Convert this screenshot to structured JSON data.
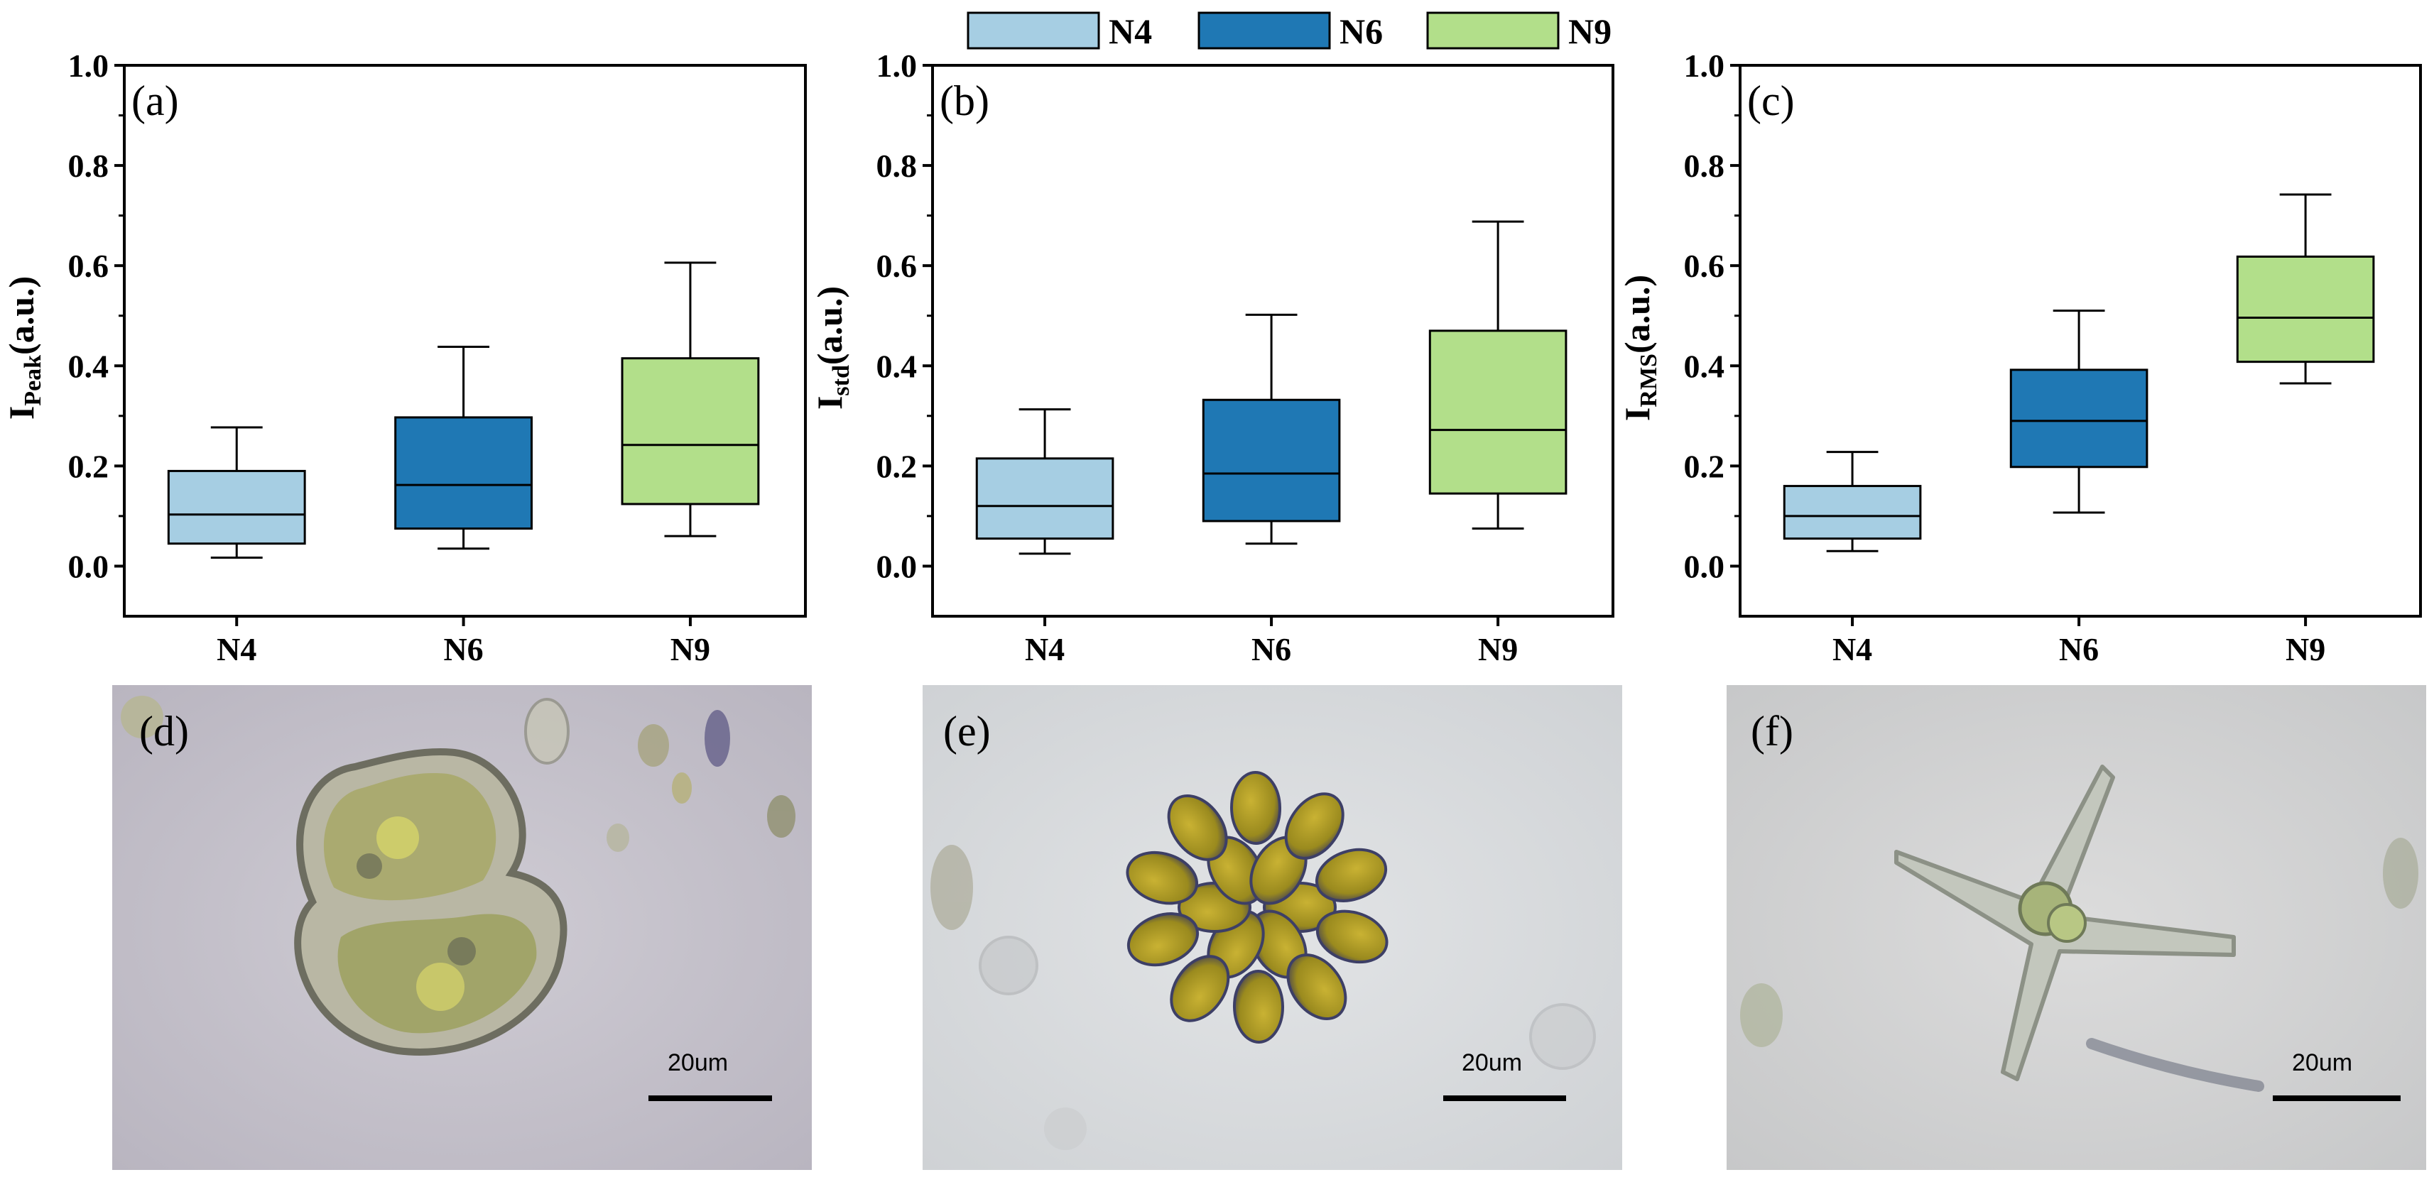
{
  "legend": [
    {
      "name": "N4",
      "color": "#a6cee3"
    },
    {
      "name": "N6",
      "color": "#1f78b4"
    },
    {
      "name": "N9",
      "color": "#b2df8a"
    }
  ],
  "chart_data": [
    {
      "type": "box",
      "panel": "(a)",
      "ylabel_main": "I",
      "ylabel_sub": "Peak",
      "ylabel_tail": "(a.u.)",
      "ylim": [
        -0.1,
        1.0
      ],
      "yticks": [
        "0.0",
        "0.2",
        "0.4",
        "0.6",
        "0.8",
        "1.0"
      ],
      "categories": [
        "N4",
        "N6",
        "N9"
      ],
      "boxes": [
        {
          "category": "N4",
          "whisker_low": 0.017,
          "q1": 0.045,
          "median": 0.103,
          "q3": 0.19,
          "whisker_high": 0.277
        },
        {
          "category": "N6",
          "whisker_low": 0.035,
          "q1": 0.075,
          "median": 0.162,
          "q3": 0.297,
          "whisker_high": 0.438
        },
        {
          "category": "N9",
          "whisker_low": 0.06,
          "q1": 0.124,
          "median": 0.242,
          "q3": 0.415,
          "whisker_high": 0.606
        }
      ]
    },
    {
      "type": "box",
      "panel": "(b)",
      "ylabel_main": "I",
      "ylabel_sub": "std",
      "ylabel_tail": "(a.u.)",
      "ylim": [
        -0.1,
        1.0
      ],
      "yticks": [
        "0.0",
        "0.2",
        "0.4",
        "0.6",
        "0.8",
        "1.0"
      ],
      "categories": [
        "N4",
        "N6",
        "N9"
      ],
      "boxes": [
        {
          "category": "N4",
          "whisker_low": 0.025,
          "q1": 0.055,
          "median": 0.12,
          "q3": 0.215,
          "whisker_high": 0.313
        },
        {
          "category": "N6",
          "whisker_low": 0.045,
          "q1": 0.09,
          "median": 0.185,
          "q3": 0.332,
          "whisker_high": 0.502
        },
        {
          "category": "N9",
          "whisker_low": 0.075,
          "q1": 0.145,
          "median": 0.272,
          "q3": 0.47,
          "whisker_high": 0.688
        }
      ]
    },
    {
      "type": "box",
      "panel": "(c)",
      "ylabel_main": "I",
      "ylabel_sub": "RMS",
      "ylabel_tail": "(a.u.)",
      "ylim": [
        -0.1,
        1.0
      ],
      "yticks": [
        "0.0",
        "0.2",
        "0.4",
        "0.6",
        "0.8",
        "1.0"
      ],
      "categories": [
        "N4",
        "N6",
        "N9"
      ],
      "boxes": [
        {
          "category": "N4",
          "whisker_low": 0.03,
          "q1": 0.055,
          "median": 0.1,
          "q3": 0.16,
          "whisker_high": 0.228
        },
        {
          "category": "N6",
          "whisker_low": 0.107,
          "q1": 0.198,
          "median": 0.29,
          "q3": 0.392,
          "whisker_high": 0.51
        },
        {
          "category": "N9",
          "whisker_low": 0.365,
          "q1": 0.408,
          "median": 0.496,
          "q3": 0.618,
          "whisker_high": 0.742
        }
      ]
    }
  ],
  "micrographs": [
    {
      "panel": "(d)",
      "scale_text": "20um"
    },
    {
      "panel": "(e)",
      "scale_text": "20um"
    },
    {
      "panel": "(f)",
      "scale_text": "20um"
    }
  ]
}
